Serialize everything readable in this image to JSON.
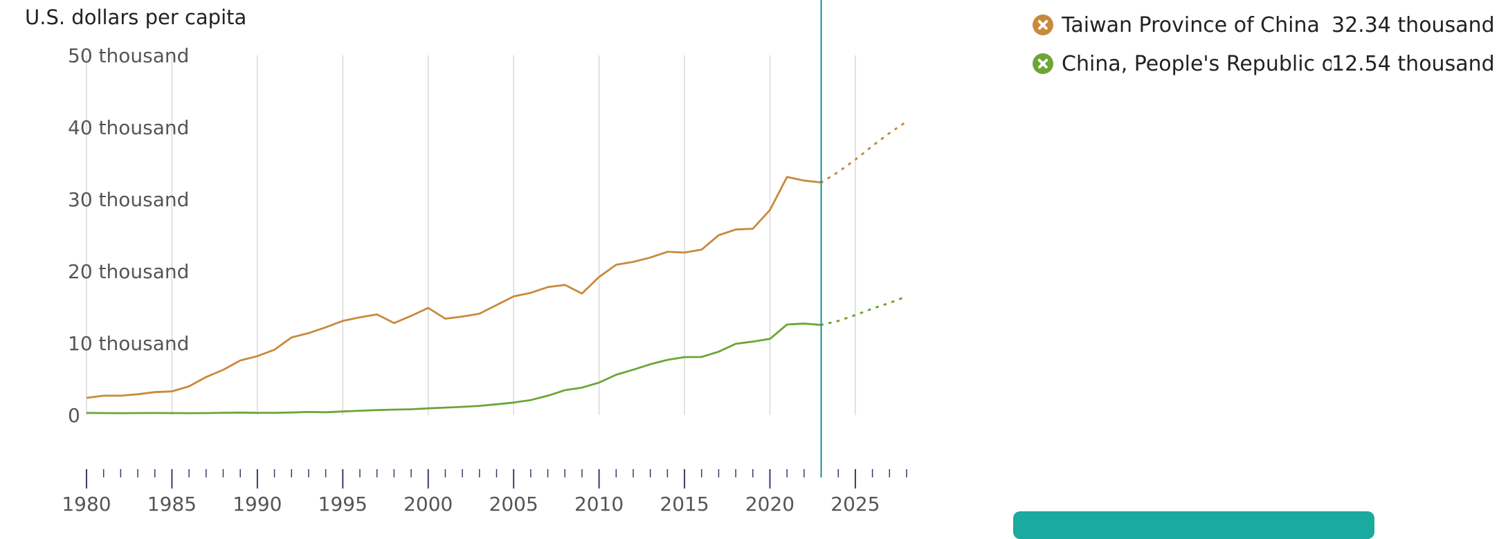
{
  "chart_data": {
    "type": "line",
    "ylabel": "U.S. dollars per capita",
    "x": [
      1980,
      1981,
      1982,
      1983,
      1984,
      1985,
      1986,
      1987,
      1988,
      1989,
      1990,
      1991,
      1992,
      1993,
      1994,
      1995,
      1996,
      1997,
      1998,
      1999,
      2000,
      2001,
      2002,
      2003,
      2004,
      2005,
      2006,
      2007,
      2008,
      2009,
      2010,
      2011,
      2012,
      2013,
      2014,
      2015,
      2016,
      2017,
      2018,
      2019,
      2020,
      2021,
      2022,
      2023,
      2024,
      2025,
      2026,
      2027,
      2028
    ],
    "xlim": [
      1980,
      2028
    ],
    "ylim": [
      -10000,
      50000
    ],
    "y_ticks": [
      {
        "value": 50000,
        "label": "50 thousand"
      },
      {
        "value": 40000,
        "label": "40 thousand"
      },
      {
        "value": 30000,
        "label": "30 thousand"
      },
      {
        "value": 20000,
        "label": "20 thousand"
      },
      {
        "value": 10000,
        "label": "10 thousand"
      },
      {
        "value": 0,
        "label": "0"
      }
    ],
    "x_tick_labels": [
      1980,
      1985,
      1990,
      1995,
      2000,
      2005,
      2010,
      2015,
      2020,
      2025
    ],
    "grid": "vertical",
    "highlight_year": 2023,
    "forecast_from": 2023,
    "series": [
      {
        "name": "Taiwan Province of China",
        "legend_value": "32.34 thousand",
        "color": "#c9893c",
        "values": [
          2400,
          2700,
          2700,
          2900,
          3200,
          3300,
          4000,
          5300,
          6300,
          7600,
          8200,
          9100,
          10800,
          11400,
          12200,
          13100,
          13600,
          14000,
          12800,
          13800,
          14900,
          13400,
          13700,
          14100,
          15300,
          16500,
          17000,
          17800,
          18100,
          16900,
          19200,
          20900,
          21300,
          21900,
          22700,
          22600,
          23000,
          25000,
          25800,
          25900,
          28500,
          33100,
          32600,
          32340,
          33800,
          35500,
          37400,
          39200,
          40800
        ]
      },
      {
        "name": "China, People's Republic of",
        "legend_value": "12.54 thousand",
        "color": "#6ca536",
        "values": [
          310,
          290,
          280,
          290,
          300,
          290,
          280,
          290,
          330,
          360,
          320,
          330,
          370,
          440,
          400,
          510,
          620,
          700,
          770,
          820,
          940,
          1050,
          1150,
          1290,
          1510,
          1750,
          2100,
          2700,
          3470,
          3830,
          4520,
          5620,
          6320,
          7080,
          7680,
          8070,
          8090,
          8820,
          9910,
          10220,
          10600,
          12600,
          12720,
          12540,
          13100,
          13900,
          14800,
          15600,
          16500
        ]
      }
    ]
  }
}
